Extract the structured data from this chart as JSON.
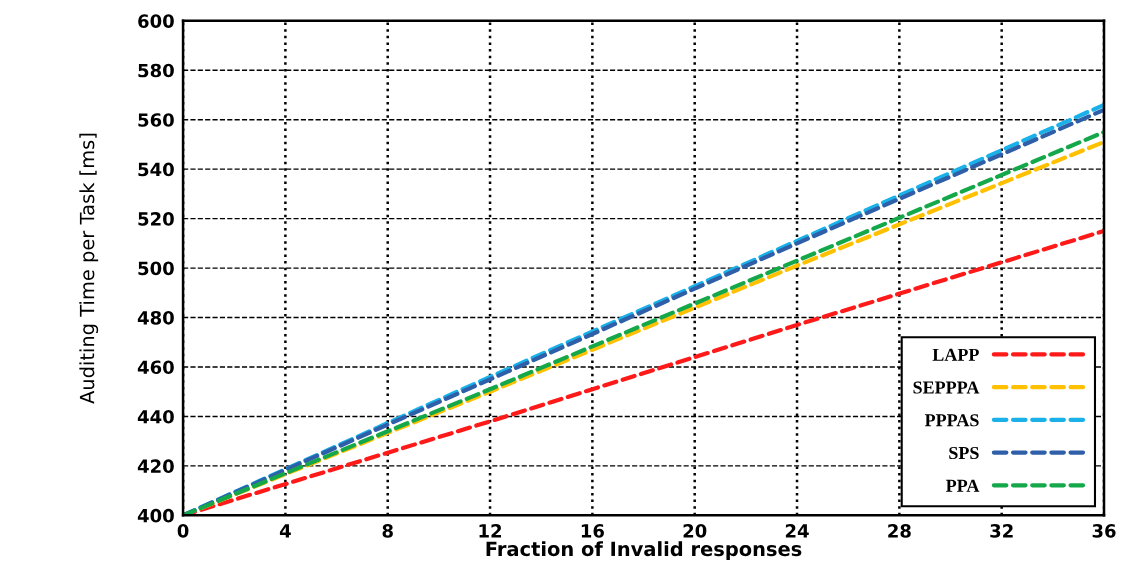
{
  "chart_data": {
    "type": "line",
    "xlabel": "Fraction of Invalid responses",
    "ylabel": "Auditing Time per Task [ms]",
    "x": [
      0,
      12,
      24,
      36
    ],
    "series": [
      {
        "name": "LAPP",
        "color": "#ff1a1a",
        "values": [
          400,
          438,
          477,
          515
        ]
      },
      {
        "name": "SEPPPA",
        "color": "#ffc000",
        "values": [
          400,
          450,
          501,
          551
        ]
      },
      {
        "name": "PPPAS",
        "color": "#1ab0e8",
        "values": [
          400,
          456,
          511,
          566
        ]
      },
      {
        "name": "SPS",
        "color": "#2e5fa8",
        "values": [
          400,
          455,
          510,
          564
        ]
      },
      {
        "name": "PPA",
        "color": "#14a84a",
        "values": [
          400,
          451,
          503,
          555
        ]
      }
    ],
    "xlim": [
      0,
      36
    ],
    "xticks": [
      0,
      4,
      8,
      12,
      16,
      20,
      24,
      28,
      32,
      36
    ],
    "ylim": [
      400,
      600
    ],
    "yticks": [
      400,
      420,
      440,
      460,
      480,
      500,
      520,
      540,
      560,
      580,
      600
    ],
    "grid": true,
    "legend": "bottom right",
    "line_style": "dashed",
    "marker": "none"
  }
}
